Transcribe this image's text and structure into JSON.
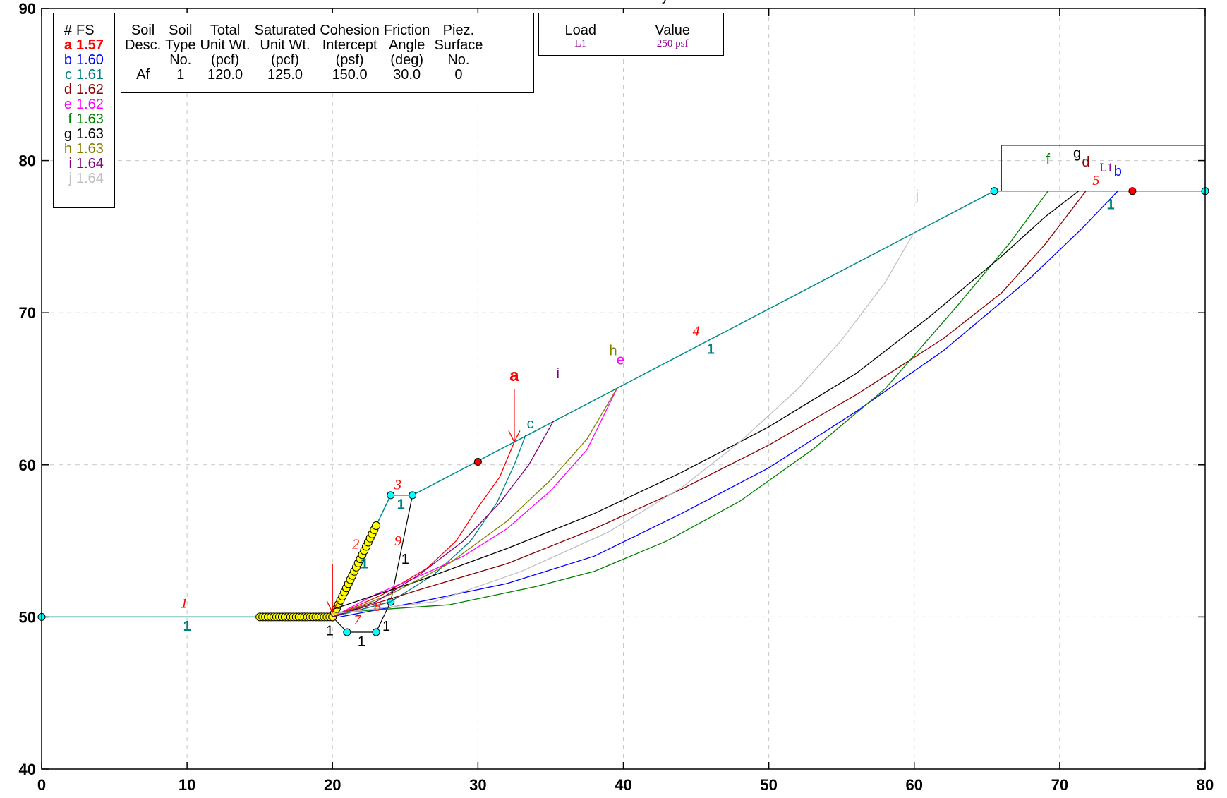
{
  "fs_legend": {
    "header_id": "#",
    "header_fs": "FS",
    "items": [
      {
        "id": "a",
        "fs": "1.57",
        "color": "#ff0000",
        "bold": true
      },
      {
        "id": "b",
        "fs": "1.60",
        "color": "#0000ff",
        "bold": false
      },
      {
        "id": "c",
        "fs": "1.61",
        "color": "#008080",
        "bold": false
      },
      {
        "id": "d",
        "fs": "1.62",
        "color": "#8b0000",
        "bold": false
      },
      {
        "id": "e",
        "fs": "1.62",
        "color": "#ff00ff",
        "bold": false
      },
      {
        "id": "f",
        "fs": "1.63",
        "color": "#008000",
        "bold": false
      },
      {
        "id": "g",
        "fs": "1.63",
        "color": "#000000",
        "bold": false
      },
      {
        "id": "h",
        "fs": "1.63",
        "color": "#808000",
        "bold": false
      },
      {
        "id": "i",
        "fs": "1.64",
        "color": "#800080",
        "bold": false
      },
      {
        "id": "j",
        "fs": "1.64",
        "color": "#c0c0c0",
        "bold": false
      }
    ]
  },
  "soil_table": {
    "headers": [
      [
        "Soil",
        "Desc."
      ],
      [
        "Soil",
        "Type",
        "No."
      ],
      [
        "Total",
        "Unit Wt.",
        "(pcf)"
      ],
      [
        "Saturated",
        "Unit Wt.",
        "(pcf)"
      ],
      [
        "Cohesion",
        "Intercept",
        "(psf)"
      ],
      [
        "Friction",
        "Angle",
        "(deg)"
      ],
      [
        "Piez.",
        "Surface",
        "No."
      ]
    ],
    "row": [
      "Af",
      "1",
      "120.0",
      "125.0",
      "150.0",
      "30.0",
      "0"
    ]
  },
  "load_table": {
    "headers": [
      "Load",
      "Value"
    ],
    "row": [
      "L1",
      "250 psf"
    ]
  },
  "axes": {
    "x_ticks": [
      "0",
      "10",
      "20",
      "30",
      "40",
      "50",
      "60",
      "70",
      "80"
    ],
    "y_ticks": [
      "40",
      "50",
      "60",
      "70",
      "80",
      "90"
    ],
    "xlim": [
      0,
      80
    ],
    "ylim": [
      40,
      90
    ],
    "grid": true,
    "grid_style": "dashed"
  },
  "title_fragment": "y",
  "colors": {
    "profile": "#008b8b",
    "reinforcement": "#ffff00",
    "node_fill": "#00ffff",
    "node_red": "#ff0000",
    "segment_label": "#ff0000",
    "load_frame": "#8b008b"
  },
  "geometry": {
    "ground_profile": [
      [
        0,
        50
      ],
      [
        20,
        50
      ],
      [
        24,
        58
      ],
      [
        25.5,
        58
      ],
      [
        65.5,
        78
      ],
      [
        80,
        78
      ]
    ],
    "profile_nodes": [
      [
        0,
        50
      ],
      [
        24,
        58
      ],
      [
        25.5,
        58
      ],
      [
        65.5,
        78
      ],
      [
        80,
        78
      ],
      [
        24,
        51
      ],
      [
        21,
        49
      ],
      [
        23,
        49
      ]
    ],
    "red_nodes": [
      [
        30,
        60.2
      ],
      [
        75,
        78
      ]
    ],
    "soil_box": [
      [
        20,
        50
      ],
      [
        24,
        51
      ],
      [
        25.5,
        58
      ]
    ],
    "drain_box": [
      [
        20,
        50
      ],
      [
        21,
        49
      ],
      [
        23,
        49
      ],
      [
        24,
        51
      ]
    ],
    "load_frame": [
      [
        66,
        78
      ],
      [
        66,
        81
      ],
      [
        80,
        81
      ],
      [
        80,
        78
      ]
    ],
    "reinforcement_horizontal": [
      [
        15,
        50
      ],
      [
        20,
        50
      ]
    ],
    "reinforcement_inclined": [
      [
        20,
        50
      ],
      [
        23,
        56
      ]
    ],
    "load_arrows": [
      {
        "from": [
          32.5,
          65
        ],
        "to": [
          32.5,
          61.5
        ],
        "color": "#ff0000"
      },
      {
        "from": [
          20,
          53.5
        ],
        "to": [
          20,
          50.3
        ],
        "color": "#ff0000"
      }
    ]
  },
  "segment_labels": [
    {
      "text": "1",
      "at": [
        9.8,
        50.6
      ],
      "color": "#ff0000",
      "italic": true
    },
    {
      "text": "2",
      "at": [
        21.6,
        54.5
      ],
      "color": "#ff0000",
      "italic": true
    },
    {
      "text": "3",
      "at": [
        24.5,
        58.4
      ],
      "color": "#ff0000",
      "italic": true
    },
    {
      "text": "4",
      "at": [
        45,
        68.5
      ],
      "color": "#ff0000",
      "italic": true
    },
    {
      "text": "5",
      "at": [
        72.5,
        78.4
      ],
      "color": "#ff0000",
      "italic": true
    },
    {
      "text": "7",
      "at": [
        21.7,
        49.5
      ],
      "color": "#ff0000",
      "italic": true
    },
    {
      "text": "8",
      "at": [
        23.1,
        50.4
      ],
      "color": "#ff0000",
      "italic": true
    },
    {
      "text": "9",
      "at": [
        24.5,
        54.7
      ],
      "color": "#ff0000",
      "italic": true
    }
  ],
  "material_labels": [
    {
      "text": "1",
      "at": [
        10,
        49.1
      ],
      "color": "#008080"
    },
    {
      "text": "1",
      "at": [
        22.2,
        53.2
      ],
      "color": "#008080"
    },
    {
      "text": "1",
      "at": [
        24.7,
        57.1
      ],
      "color": "#008080"
    },
    {
      "text": "1",
      "at": [
        46,
        67.3
      ],
      "color": "#008080"
    },
    {
      "text": "1",
      "at": [
        73.5,
        76.8
      ],
      "color": "#008080"
    },
    {
      "text": "1",
      "at": [
        19.8,
        48.8
      ],
      "color": "#000000"
    },
    {
      "text": "1",
      "at": [
        22,
        48.1
      ],
      "color": "#000000"
    },
    {
      "text": "1",
      "at": [
        23.7,
        49.1
      ],
      "color": "#000000"
    },
    {
      "text": "1",
      "at": [
        25,
        53.5
      ],
      "color": "#000000"
    }
  ],
  "load_label": {
    "text": "L1",
    "at": [
      73.2,
      79.3
    ],
    "color": "#8b008b"
  },
  "surfaces": [
    {
      "id": "a",
      "color": "#ff0000",
      "label_at": [
        32.5,
        65.5
      ],
      "bold": true,
      "points": [
        [
          20,
          50
        ],
        [
          23.5,
          51.5
        ],
        [
          26.5,
          53.2
        ],
        [
          28.5,
          55
        ],
        [
          30,
          57.2
        ],
        [
          31.5,
          59.2
        ],
        [
          32.5,
          61.5
        ]
      ]
    },
    {
      "id": "b",
      "color": "#0000ff",
      "label_at": [
        74,
        79
      ],
      "bold": false,
      "points": [
        [
          20.5,
          50
        ],
        [
          26,
          51
        ],
        [
          32,
          52.2
        ],
        [
          38,
          54
        ],
        [
          44,
          56.8
        ],
        [
          50,
          59.8
        ],
        [
          56,
          63.5
        ],
        [
          62,
          67.5
        ],
        [
          68,
          72.3
        ],
        [
          71.5,
          75.5
        ],
        [
          74,
          78
        ]
      ]
    },
    {
      "id": "c",
      "color": "#008080",
      "label_at": [
        33.6,
        62.4
      ],
      "bold": false,
      "points": [
        [
          20,
          50
        ],
        [
          24,
          51
        ],
        [
          27,
          52.8
        ],
        [
          29.5,
          55
        ],
        [
          31.3,
          57.5
        ],
        [
          32.5,
          60
        ],
        [
          33.3,
          62
        ]
      ]
    },
    {
      "id": "d",
      "color": "#8b0000",
      "label_at": [
        71.8,
        79.6
      ],
      "bold": false,
      "points": [
        [
          20,
          50
        ],
        [
          26,
          51.8
        ],
        [
          32,
          53.5
        ],
        [
          38,
          55.8
        ],
        [
          44,
          58.4
        ],
        [
          50,
          61.3
        ],
        [
          56,
          64.6
        ],
        [
          62,
          68.3
        ],
        [
          66,
          71.3
        ],
        [
          69,
          74.5
        ],
        [
          71.8,
          78
        ]
      ]
    },
    {
      "id": "e",
      "color": "#ff00ff",
      "label_at": [
        39.8,
        66.6
      ],
      "bold": false,
      "points": [
        [
          20,
          50
        ],
        [
          23,
          51.5
        ],
        [
          26,
          52.7
        ],
        [
          29,
          54
        ],
        [
          32,
          55.8
        ],
        [
          35,
          58.3
        ],
        [
          37.5,
          61
        ],
        [
          39.6,
          65.1
        ]
      ]
    },
    {
      "id": "f",
      "color": "#008000",
      "label_at": [
        69.2,
        79.8
      ],
      "bold": false,
      "points": [
        [
          20.5,
          50.3
        ],
        [
          28,
          50.8
        ],
        [
          34,
          52
        ],
        [
          38,
          53
        ],
        [
          43,
          55
        ],
        [
          48,
          57.6
        ],
        [
          53,
          61
        ],
        [
          58,
          65
        ],
        [
          63,
          70.5
        ],
        [
          66.5,
          74.5
        ],
        [
          69.2,
          78
        ]
      ]
    },
    {
      "id": "g",
      "color": "#000000",
      "label_at": [
        71.2,
        80.2
      ],
      "bold": false,
      "points": [
        [
          20,
          50.5
        ],
        [
          26,
          52.4
        ],
        [
          32,
          54.5
        ],
        [
          38,
          56.8
        ],
        [
          44,
          59.5
        ],
        [
          50,
          62.5
        ],
        [
          56,
          66
        ],
        [
          61,
          69.7
        ],
        [
          66,
          73.7
        ],
        [
          69,
          76.3
        ],
        [
          71.3,
          78
        ]
      ]
    },
    {
      "id": "h",
      "color": "#808000",
      "label_at": [
        39.3,
        67.2
      ],
      "bold": false,
      "points": [
        [
          20,
          50
        ],
        [
          24,
          51.5
        ],
        [
          28,
          53.5
        ],
        [
          32,
          56.3
        ],
        [
          35,
          59
        ],
        [
          37.5,
          61.7
        ],
        [
          39.6,
          65.1
        ]
      ]
    },
    {
      "id": "i",
      "color": "#800080",
      "label_at": [
        35.5,
        65.7
      ],
      "bold": false,
      "points": [
        [
          20,
          50
        ],
        [
          23,
          51
        ],
        [
          26,
          52.8
        ],
        [
          29,
          55
        ],
        [
          31.5,
          57.5
        ],
        [
          33.5,
          60
        ],
        [
          35.2,
          62.9
        ]
      ]
    },
    {
      "id": "j",
      "color": "#c0c0c0",
      "label_at": [
        60.2,
        77.4
      ],
      "bold": false,
      "points": [
        [
          20,
          50.2
        ],
        [
          27,
          51
        ],
        [
          33,
          53
        ],
        [
          39,
          55.6
        ],
        [
          44,
          58.5
        ],
        [
          48,
          61.5
        ],
        [
          52,
          65
        ],
        [
          55,
          68.2
        ],
        [
          58,
          72
        ],
        [
          60,
          75.3
        ]
      ]
    }
  ]
}
